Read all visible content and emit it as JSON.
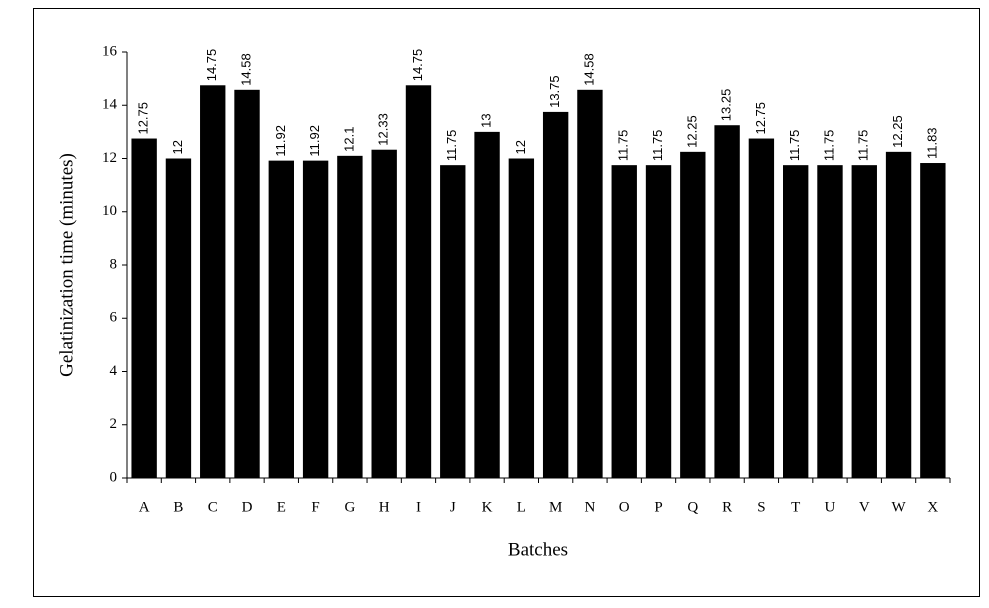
{
  "chart_data": {
    "type": "bar",
    "x_label": "Batches",
    "y_label": "Gelatinization time (minutes)",
    "categories": [
      "A",
      "B",
      "C",
      "D",
      "E",
      "F",
      "G",
      "H",
      "I",
      "J",
      "K",
      "L",
      "M",
      "N",
      "O",
      "P",
      "Q",
      "R",
      "S",
      "T",
      "U",
      "V",
      "W",
      "X"
    ],
    "values": [
      12.75,
      12,
      14.75,
      14.58,
      11.92,
      11.92,
      12.1,
      12.33,
      14.75,
      11.75,
      13,
      12,
      13.75,
      14.58,
      11.75,
      11.75,
      12.25,
      13.25,
      12.75,
      11.75,
      11.75,
      11.75,
      12.25,
      11.83
    ],
    "color": "#000000",
    "ylim": [
      0,
      16
    ],
    "yticks": [
      0,
      2,
      4,
      6,
      8,
      10,
      12,
      14,
      16
    ],
    "grid": false
  }
}
